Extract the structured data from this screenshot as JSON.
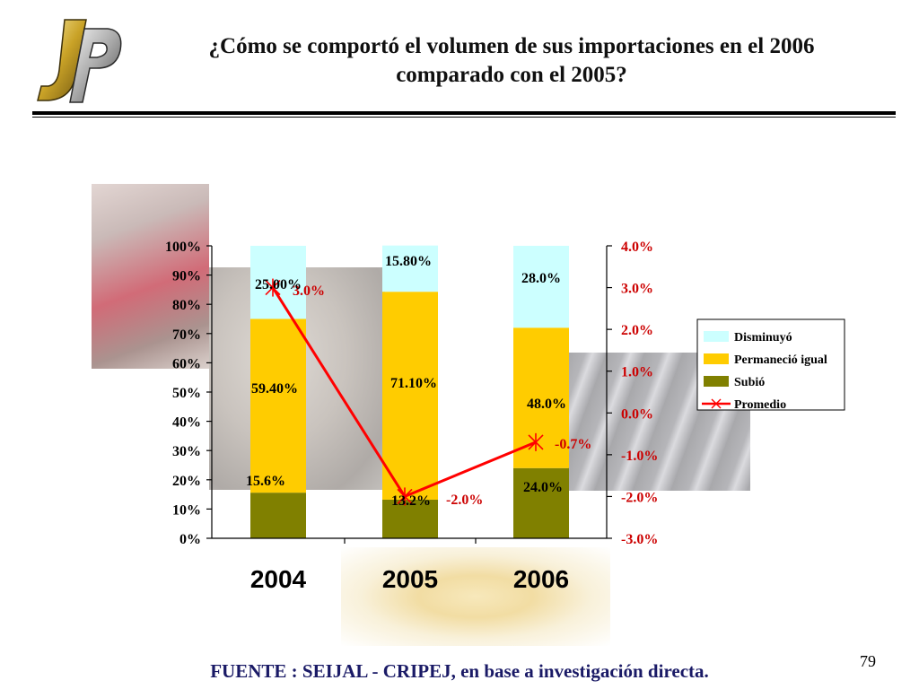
{
  "page": {
    "title_line1": "¿Cómo se comportó el volumen de sus importaciones en el 2006",
    "title_line2": "comparado con el 2005?",
    "page_number": "79",
    "source": "FUENTE :  SEIJAL - CRIPEJ,  en base a investigación directa."
  },
  "colors": {
    "disminuyo": "#ccffff",
    "permanecio": "#ffcc00",
    "subio": "#808000",
    "promedio": "#ff0000",
    "right_axis_text": "#cc0000"
  },
  "chart_data": {
    "type": "bar",
    "stacked": true,
    "categories": [
      "2004",
      "2005",
      "2006"
    ],
    "series": [
      {
        "name": "Subió",
        "values": [
          15.6,
          13.2,
          24.0
        ],
        "labels": [
          "15.6%",
          "13.2%",
          "24.0%"
        ]
      },
      {
        "name": "Permaneció igual",
        "values": [
          59.4,
          71.1,
          48.0
        ],
        "labels": [
          "59.40%",
          "71.10%",
          "48.0%"
        ]
      },
      {
        "name": "Disminuyó",
        "values": [
          25.0,
          15.8,
          28.0
        ],
        "labels": [
          "25.00%",
          "15.80%",
          "28.0%"
        ]
      }
    ],
    "line_series": {
      "name": "Promedio",
      "axis": "right",
      "values": [
        3.0,
        -2.0,
        -0.7
      ],
      "labels": [
        "3.0%",
        "-2.0%",
        "-0.7%"
      ]
    },
    "left_axis": {
      "ylim": [
        0,
        100
      ],
      "ticks": [
        "0%",
        "10%",
        "20%",
        "30%",
        "40%",
        "50%",
        "60%",
        "70%",
        "80%",
        "90%",
        "100%"
      ]
    },
    "right_axis": {
      "ylim": [
        -3.0,
        4.0
      ],
      "ticks": [
        "-3.0%",
        "-2.0%",
        "-1.0%",
        "0.0%",
        "1.0%",
        "2.0%",
        "3.0%",
        "4.0%"
      ]
    },
    "legend": {
      "placement": "right",
      "items": [
        "Disminuyó",
        "Permaneció igual",
        "Subió",
        "Promedio"
      ]
    }
  }
}
